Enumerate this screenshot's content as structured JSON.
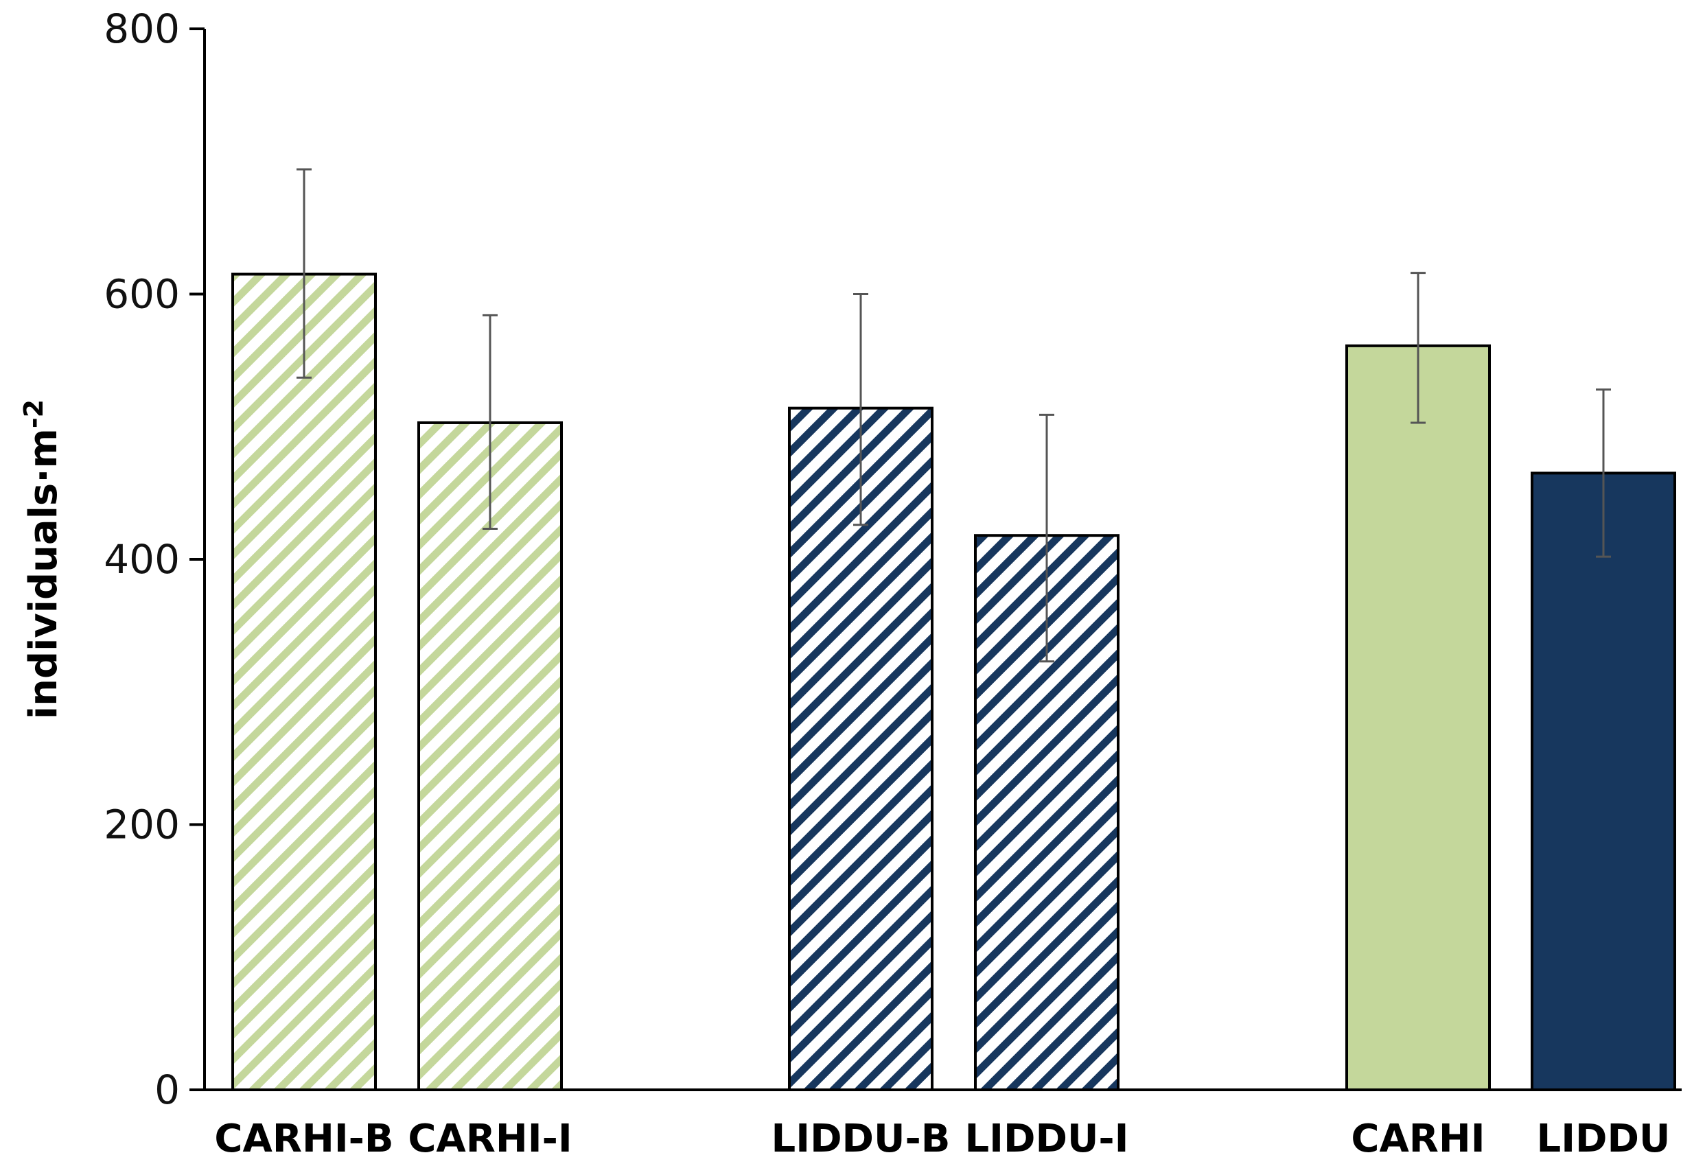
{
  "chart_data": {
    "type": "bar",
    "title": "",
    "xlabel": "",
    "ylabel": "individuals·m",
    "ylabel_superscript": "-2",
    "ylim": [
      0,
      800
    ],
    "yticks": [
      "0",
      "200",
      "400",
      "600",
      "800"
    ],
    "grid": false,
    "legend": "none",
    "categories": [
      "CARHI-B",
      "CARHI-I",
      "LIDDU-B",
      "LIDDU-I",
      "CARHI",
      "LIDDU"
    ],
    "values": [
      615,
      503,
      514,
      418,
      561,
      465
    ],
    "error_low": [
      537,
      423,
      426,
      323,
      503,
      402
    ],
    "error_high": [
      694,
      584,
      600,
      509,
      616,
      528
    ],
    "fills": [
      "hatch-green",
      "hatch-green",
      "hatch-navy",
      "hatch-navy",
      "solid-green",
      "solid-navy"
    ],
    "colors": {
      "green": "#c4d79b",
      "navy": "#17375e",
      "error": "#555555"
    }
  }
}
